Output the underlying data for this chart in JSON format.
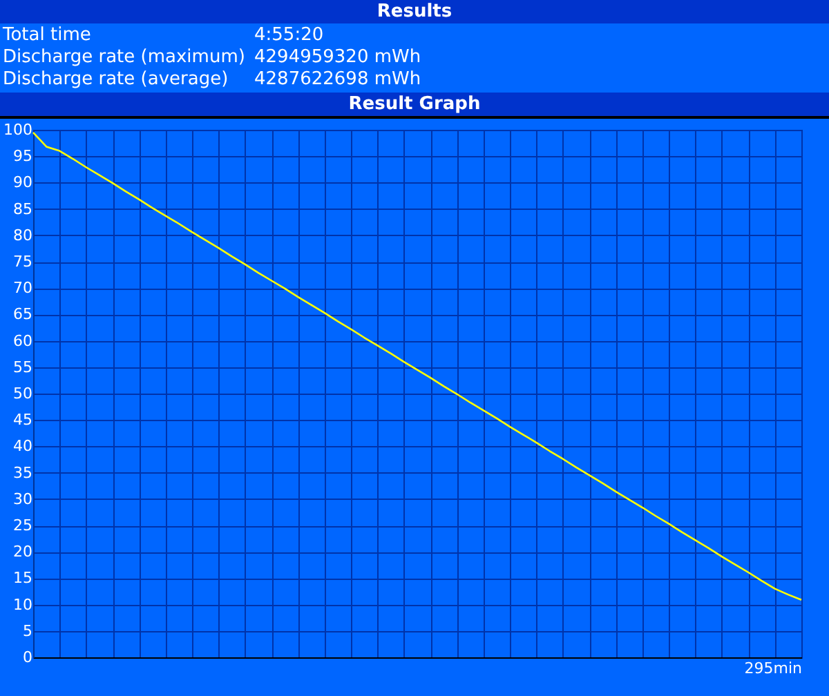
{
  "chart_data": {
    "type": "line",
    "title": "Results",
    "subtitle": "Result Graph",
    "xlabel": "295min",
    "annotations": [
      "Total time",
      "4:55:20",
      "Discharge rate (maximum)",
      "4294959320 mWh",
      "Discharge rate (average)",
      "4287622698 mWh"
    ],
    "categories": [
      null,
      null,
      null,
      null,
      null,
      null,
      null,
      null,
      null,
      null,
      null,
      null,
      null,
      null,
      null,
      null,
      null,
      null,
      null,
      null,
      null,
      null,
      null,
      null,
      null,
      null,
      null,
      null,
      null,
      null,
      null,
      null,
      null,
      null,
      null,
      null,
      null,
      null,
      null,
      null,
      null,
      null,
      null,
      null,
      null,
      null,
      null,
      null,
      null,
      null,
      null,
      null,
      null,
      null,
      null,
      null,
      null,
      null,
      null
    ],
    "series": [
      {
        "color": "#ffff00",
        "values": [
          99.5,
          96.8,
          96.0,
          94.5,
          92.9,
          91.4,
          89.9,
          88.3,
          86.8,
          85.2,
          83.7,
          82.2,
          80.6,
          79.1,
          77.6,
          76.0,
          74.5,
          72.9,
          71.4,
          69.9,
          68.3,
          66.8,
          65.3,
          63.7,
          62.2,
          60.6,
          59.1,
          57.6,
          56.0,
          54.5,
          53.0,
          51.4,
          49.9,
          48.3,
          46.8,
          45.3,
          43.7,
          42.2,
          40.7,
          39.1,
          37.6,
          36.0,
          34.5,
          33.0,
          31.4,
          29.9,
          28.4,
          26.8,
          25.3,
          23.7,
          22.2,
          20.7,
          19.1,
          17.6,
          16.1,
          14.5,
          13.0,
          11.9,
          10.9
        ]
      }
    ],
    "ylim": [
      0,
      100
    ],
    "yticks": [
      0,
      5,
      10,
      15,
      20,
      25,
      30,
      35,
      40,
      45,
      50,
      55,
      60,
      65,
      70,
      75,
      80,
      85,
      90,
      95,
      100
    ],
    "grid": true,
    "marker": "none",
    "line_style": "solid"
  }
}
